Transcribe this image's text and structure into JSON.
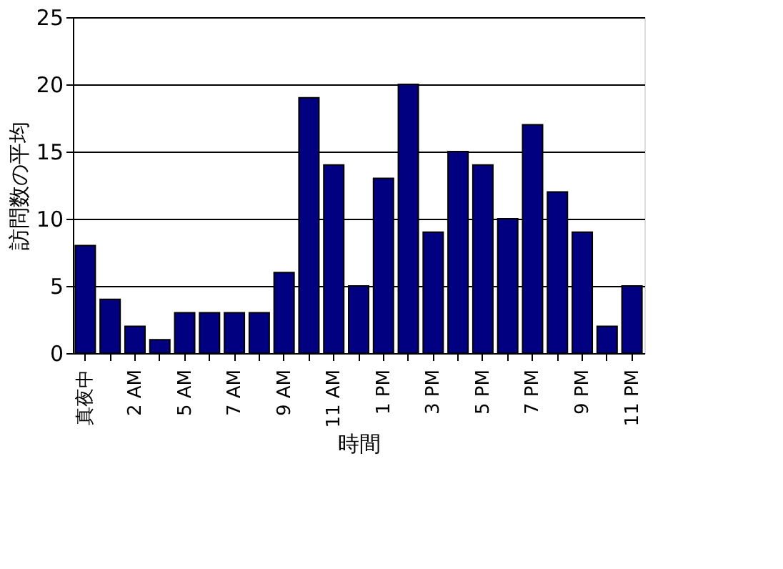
{
  "chart_data": {
    "type": "bar",
    "categories": [
      "真夜中",
      null,
      "2 AM",
      null,
      "5 AM",
      null,
      "7 AM",
      null,
      "9 AM",
      null,
      "11 AM",
      null,
      "1 PM",
      null,
      "3 PM",
      null,
      "5 PM",
      null,
      "7 PM",
      null,
      "9 PM",
      null,
      "11 PM"
    ],
    "values": [
      8,
      4,
      2,
      1,
      3,
      3,
      3,
      3,
      6,
      19,
      14,
      5,
      13,
      20,
      9,
      15,
      14,
      10,
      17,
      12,
      9,
      2,
      5
    ],
    "color": "#000080",
    "xlabel": "時間",
    "ylabel": "訪問数の平均",
    "ylim": [
      0,
      25
    ],
    "yticks": [
      0,
      5,
      10,
      15,
      20,
      25
    ],
    "grid": "y"
  }
}
